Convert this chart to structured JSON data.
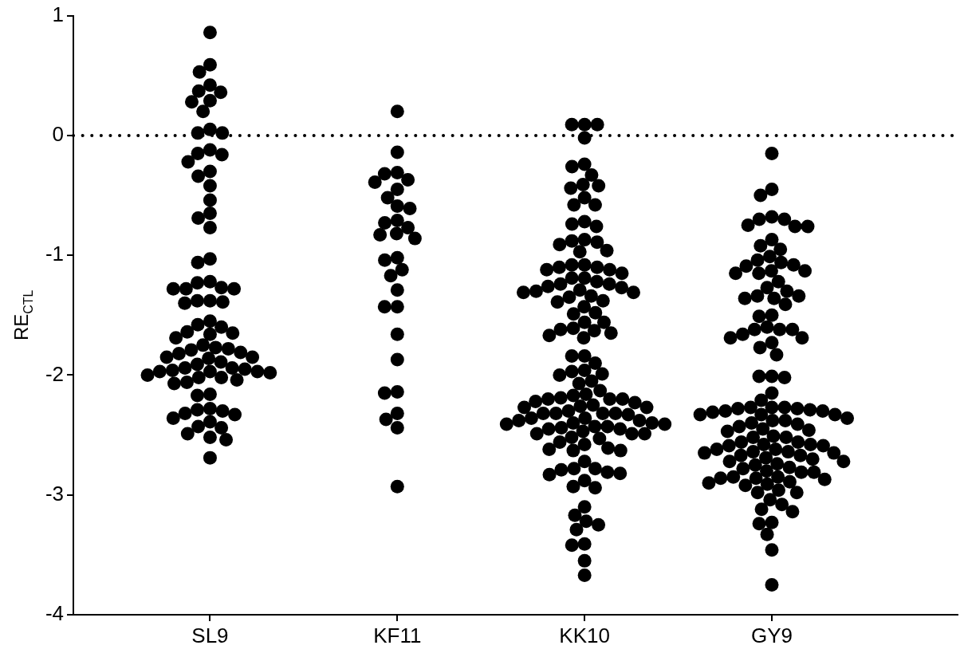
{
  "chart_data": {
    "type": "scatter",
    "ylabel": "RE$_{CTL}$",
    "categories": [
      "SL9",
      "KF11",
      "KK10",
      "GY9"
    ],
    "ylim": [
      -4,
      1
    ],
    "yticks": [
      -4,
      -3,
      -2,
      -1,
      0,
      1
    ],
    "grid": false,
    "marker": "circle",
    "ref_lines": [
      {
        "axis": "y",
        "value": 0,
        "color": "#000000",
        "line_style": "dotted"
      }
    ],
    "series": [
      {
        "color": "#000000",
        "x": [
          "SL9",
          "SL9",
          "SL9",
          "SL9",
          "SL9",
          "SL9",
          "SL9",
          "SL9",
          "SL9",
          "SL9",
          "SL9",
          "SL9",
          "SL9",
          "SL9",
          "SL9",
          "SL9",
          "SL9",
          "SL9",
          "SL9",
          "SL9",
          "SL9",
          "SL9",
          "SL9",
          "SL9",
          "SL9",
          "SL9",
          "SL9",
          "SL9",
          "SL9",
          "SL9",
          "SL9",
          "SL9",
          "SL9",
          "SL9",
          "SL9",
          "SL9",
          "SL9",
          "SL9",
          "SL9",
          "SL9",
          "SL9",
          "SL9",
          "SL9",
          "SL9",
          "SL9",
          "SL9",
          "SL9",
          "SL9",
          "SL9",
          "SL9",
          "SL9",
          "SL9",
          "SL9",
          "SL9",
          "SL9",
          "SL9",
          "SL9",
          "SL9",
          "SL9",
          "SL9",
          "SL9",
          "SL9",
          "SL9",
          "SL9",
          "SL9",
          "SL9",
          "SL9",
          "SL9",
          "SL9",
          "SL9",
          "SL9",
          "SL9",
          "SL9",
          "SL9",
          "SL9",
          "SL9",
          "SL9",
          "SL9",
          "SL9",
          "SL9",
          "SL9",
          "SL9"
        ],
        "values": [
          0.86,
          0.59,
          0.53,
          0.42,
          0.36,
          0.37,
          0.28,
          0.29,
          0.2,
          0.05,
          0.02,
          0.02,
          -0.15,
          -0.22,
          -0.16,
          -0.12,
          -0.34,
          -0.3,
          -0.42,
          -0.54,
          -0.65,
          -0.69,
          -0.77,
          -1.03,
          -1.06,
          -1.27,
          -1.28,
          -1.23,
          -1.22,
          -1.28,
          -1.28,
          -1.38,
          -1.39,
          -1.4,
          -1.38,
          -1.55,
          -1.6,
          -1.65,
          -1.69,
          -1.66,
          -1.64,
          -1.58,
          -1.75,
          -1.78,
          -1.81,
          -1.85,
          -1.86,
          -1.91,
          -1.89,
          -1.85,
          -1.82,
          -1.79,
          -1.77,
          -1.94,
          -1.96,
          -1.97,
          -1.98,
          -2.02,
          -2.0,
          -1.97,
          -1.97,
          -1.95,
          -1.94,
          -2.02,
          -2.06,
          -2.07,
          -2.04,
          -2.16,
          -2.17,
          -2.28,
          -2.3,
          -2.33,
          -2.32,
          -2.29,
          -2.36,
          -2.39,
          -2.44,
          -2.43,
          -2.52,
          -2.49,
          -2.54,
          -2.69
        ]
      },
      {
        "color": "#000000",
        "x": [
          "KF11",
          "KF11",
          "KF11",
          "KF11",
          "KF11",
          "KF11",
          "KF11",
          "KF11",
          "KF11",
          "KF11",
          "KF11",
          "KF11",
          "KF11",
          "KF11",
          "KF11",
          "KF11",
          "KF11",
          "KF11",
          "KF11",
          "KF11",
          "KF11",
          "KF11",
          "KF11",
          "KF11",
          "KF11",
          "KF11",
          "KF11",
          "KF11",
          "KF11",
          "KF11",
          "KF11"
        ],
        "values": [
          0.2,
          -0.14,
          -0.31,
          -0.32,
          -0.37,
          -0.39,
          -0.45,
          -0.52,
          -0.59,
          -0.61,
          -0.71,
          -0.73,
          -0.77,
          -0.83,
          -0.86,
          -0.82,
          -1.04,
          -1.02,
          -1.12,
          -1.17,
          -1.29,
          -1.43,
          -1.43,
          -1.66,
          -1.87,
          -2.15,
          -2.14,
          -2.32,
          -2.37,
          -2.44,
          -2.93
        ]
      },
      {
        "color": "#000000",
        "x": [
          "KK10",
          "KK10",
          "KK10",
          "KK10",
          "KK10",
          "KK10",
          "KK10",
          "KK10",
          "KK10",
          "KK10",
          "KK10",
          "KK10",
          "KK10",
          "KK10",
          "KK10",
          "KK10",
          "KK10",
          "KK10",
          "KK10",
          "KK10",
          "KK10",
          "KK10",
          "KK10",
          "KK10",
          "KK10",
          "KK10",
          "KK10",
          "KK10",
          "KK10",
          "KK10",
          "KK10",
          "KK10",
          "KK10",
          "KK10",
          "KK10",
          "KK10",
          "KK10",
          "KK10",
          "KK10",
          "KK10",
          "KK10",
          "KK10",
          "KK10",
          "KK10",
          "KK10",
          "KK10",
          "KK10",
          "KK10",
          "KK10",
          "KK10",
          "KK10",
          "KK10",
          "KK10",
          "KK10",
          "KK10",
          "KK10",
          "KK10",
          "KK10",
          "KK10",
          "KK10",
          "KK10",
          "KK10",
          "KK10",
          "KK10",
          "KK10",
          "KK10",
          "KK10",
          "KK10",
          "KK10",
          "KK10",
          "KK10",
          "KK10",
          "KK10",
          "KK10",
          "KK10",
          "KK10",
          "KK10",
          "KK10",
          "KK10",
          "KK10",
          "KK10",
          "KK10",
          "KK10",
          "KK10",
          "KK10",
          "KK10",
          "KK10",
          "KK10",
          "KK10",
          "KK10",
          "KK10",
          "KK10",
          "KK10",
          "KK10",
          "KK10",
          "KK10",
          "KK10",
          "KK10",
          "KK10",
          "KK10",
          "KK10",
          "KK10",
          "KK10",
          "KK10",
          "KK10",
          "KK10",
          "KK10",
          "KK10",
          "KK10",
          "KK10",
          "KK10",
          "KK10",
          "KK10",
          "KK10",
          "KK10",
          "KK10",
          "KK10",
          "KK10",
          "KK10",
          "KK10",
          "KK10",
          "KK10",
          "KK10",
          "KK10",
          "KK10",
          "KK10",
          "KK10"
        ],
        "values": [
          0.09,
          0.09,
          0.09,
          -0.02,
          -0.26,
          -0.24,
          -0.33,
          -0.41,
          -0.42,
          -0.44,
          -0.52,
          -0.58,
          -0.58,
          -0.74,
          -0.76,
          -0.72,
          -0.88,
          -0.91,
          -0.89,
          -0.87,
          -0.97,
          -0.96,
          -1.08,
          -1.1,
          -1.12,
          -1.15,
          -1.12,
          -1.1,
          -1.08,
          -1.19,
          -1.22,
          -1.24,
          -1.27,
          -1.3,
          -1.31,
          -1.31,
          -1.29,
          -1.26,
          -1.24,
          -1.19,
          -1.35,
          -1.39,
          -1.48,
          -1.49,
          -1.43,
          -1.38,
          -1.34,
          -1.56,
          -1.62,
          -1.65,
          -1.69,
          -1.67,
          -1.63,
          -1.61,
          -1.56,
          -1.84,
          -1.84,
          -1.9,
          -1.97,
          -2.0,
          -1.99,
          -1.96,
          -2.05,
          -2.07,
          -2.16,
          -2.17,
          -2.13,
          -2.19,
          -2.2,
          -2.22,
          -2.25,
          -2.27,
          -2.3,
          -2.32,
          -2.32,
          -2.27,
          -2.26,
          -2.23,
          -2.2,
          -2.2,
          -2.32,
          -2.36,
          -2.38,
          -2.4,
          -2.41,
          -2.43,
          -2.44,
          -2.45,
          -2.47,
          -2.45,
          -2.43,
          -2.41,
          -2.4,
          -2.38,
          -2.36,
          -2.33,
          -2.32,
          -2.49,
          -2.52,
          -2.56,
          -2.63,
          -2.61,
          -2.63,
          -2.62,
          -2.58,
          -2.53,
          -2.49,
          -2.49,
          -2.72,
          -2.79,
          -2.82,
          -2.88,
          -2.78,
          -2.78,
          -2.94,
          -2.93,
          -2.83,
          -2.81,
          -3.1,
          -3.17,
          -3.25,
          -3.22,
          -3.29,
          -3.41,
          -3.42,
          -3.55,
          -3.67
        ]
      },
      {
        "color": "#000000",
        "x": [
          "GY9",
          "GY9",
          "GY9",
          "GY9",
          "GY9",
          "GY9",
          "GY9",
          "GY9",
          "GY9",
          "GY9",
          "GY9",
          "GY9",
          "GY9",
          "GY9",
          "GY9",
          "GY9",
          "GY9",
          "GY9",
          "GY9",
          "GY9",
          "GY9",
          "GY9",
          "GY9",
          "GY9",
          "GY9",
          "GY9",
          "GY9",
          "GY9",
          "GY9",
          "GY9",
          "GY9",
          "GY9",
          "GY9",
          "GY9",
          "GY9",
          "GY9",
          "GY9",
          "GY9",
          "GY9",
          "GY9",
          "GY9",
          "GY9",
          "GY9",
          "GY9",
          "GY9",
          "GY9",
          "GY9",
          "GY9",
          "GY9",
          "GY9",
          "GY9",
          "GY9",
          "GY9",
          "GY9",
          "GY9",
          "GY9",
          "GY9",
          "GY9",
          "GY9",
          "GY9",
          "GY9",
          "GY9",
          "GY9",
          "GY9",
          "GY9",
          "GY9",
          "GY9",
          "GY9",
          "GY9",
          "GY9",
          "GY9",
          "GY9",
          "GY9",
          "GY9",
          "GY9",
          "GY9",
          "GY9",
          "GY9",
          "GY9",
          "GY9",
          "GY9",
          "GY9",
          "GY9",
          "GY9",
          "GY9",
          "GY9",
          "GY9",
          "GY9",
          "GY9",
          "GY9",
          "GY9",
          "GY9",
          "GY9",
          "GY9",
          "GY9",
          "GY9",
          "GY9",
          "GY9",
          "GY9",
          "GY9",
          "GY9",
          "GY9",
          "GY9",
          "GY9",
          "GY9",
          "GY9",
          "GY9",
          "GY9",
          "GY9",
          "GY9",
          "GY9",
          "GY9",
          "GY9",
          "GY9",
          "GY9",
          "GY9"
        ],
        "values": [
          -0.15,
          -0.45,
          -0.5,
          -0.7,
          -0.75,
          -0.76,
          -0.76,
          -0.7,
          -0.68,
          -0.92,
          -0.95,
          -0.87,
          -1.01,
          -1.06,
          -1.09,
          -1.13,
          -1.15,
          -1.15,
          -1.13,
          -1.08,
          -1.04,
          -1.22,
          -1.27,
          -1.36,
          -1.34,
          -1.34,
          -1.41,
          -1.3,
          -1.36,
          -1.51,
          -1.5,
          -1.62,
          -1.62,
          -1.69,
          -1.73,
          -1.66,
          -1.62,
          -1.69,
          -1.77,
          -1.6,
          -1.83,
          -2.01,
          -2.02,
          -2.01,
          -2.15,
          -2.21,
          -2.27,
          -2.27,
          -2.27,
          -2.28,
          -2.3,
          -2.31,
          -2.33,
          -2.36,
          -2.38,
          -2.41,
          -2.43,
          -2.4,
          -2.38,
          -2.33,
          -2.33,
          -2.3,
          -2.29,
          -2.28,
          -2.45,
          -2.47,
          -2.52,
          -2.56,
          -2.58,
          -2.59,
          -2.59,
          -2.58,
          -2.56,
          -2.52,
          -2.51,
          -2.46,
          -2.62,
          -2.64,
          -2.65,
          -2.67,
          -2.7,
          -2.72,
          -2.74,
          -2.77,
          -2.75,
          -2.72,
          -2.69,
          -2.67,
          -2.65,
          -2.64,
          -2.62,
          -2.78,
          -2.81,
          -2.85,
          -2.86,
          -2.87,
          -2.9,
          -2.92,
          -2.91,
          -2.89,
          -2.86,
          -2.85,
          -2.81,
          -2.8,
          -2.98,
          -3.04,
          -3.08,
          -2.98,
          -2.96,
          -3.14,
          -3.12,
          -3.24,
          -3.33,
          -3.23,
          -3.46,
          -3.75
        ]
      }
    ]
  }
}
